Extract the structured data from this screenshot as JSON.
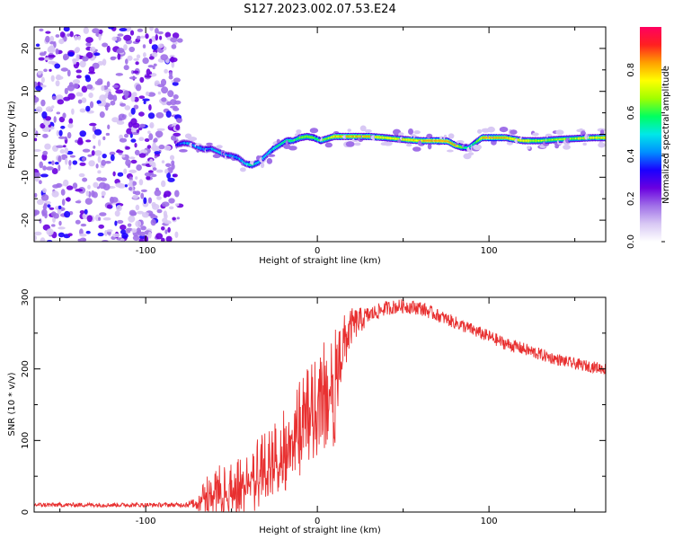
{
  "title": "S127.2023.002.07.53.E24",
  "chart_data": [
    {
      "type": "heatmap",
      "xlabel": "Height of straight line (km)",
      "ylabel": "Frequency (Hz)",
      "xlim": [
        -165,
        168
      ],
      "ylim": [
        -25,
        25
      ],
      "xticks": [
        -100,
        0,
        100
      ],
      "yticks": [
        -20,
        -10,
        0,
        10,
        20
      ],
      "colorbar": {
        "label": "Normalized spectral amplitude",
        "range": [
          0,
          1
        ],
        "ticks": [
          "0.0",
          "0.2",
          "0.4",
          "0.6",
          "0.8"
        ],
        "colors": [
          "#ffffff",
          "#d8c8f4",
          "#a070e8",
          "#6a00e0",
          "#1a00ff",
          "#0090ff",
          "#00e8e8",
          "#00ff60",
          "#a0ff00",
          "#ffff00",
          "#ffa000",
          "#ff2020",
          "#ff0060"
        ]
      },
      "noise_region_x": [
        -165,
        -80
      ],
      "ridge": {
        "x": [
          -82,
          -78,
          -74,
          -70,
          -66,
          -62,
          -58,
          -54,
          -50,
          -46,
          -42,
          -38,
          -34,
          -30,
          -26,
          -22,
          -18,
          -14,
          -10,
          -6,
          -2,
          2,
          6,
          10,
          20,
          30,
          40,
          50,
          60,
          70,
          76,
          80,
          84,
          88,
          92,
          96,
          100,
          110,
          120,
          130,
          140,
          150,
          160,
          168
        ],
        "y": [
          -2.5,
          -2.0,
          -2.2,
          -3.0,
          -3.5,
          -3.3,
          -4.0,
          -4.8,
          -5.0,
          -5.5,
          -6.8,
          -7.2,
          -6.5,
          -5.0,
          -3.5,
          -2.5,
          -1.5,
          -1.5,
          -0.8,
          -0.5,
          -0.8,
          -1.5,
          -1.0,
          -0.5,
          -0.5,
          -0.5,
          -0.8,
          -1.2,
          -1.5,
          -1.5,
          -1.6,
          -2.5,
          -3.0,
          -3.2,
          -2.0,
          -0.8,
          -0.8,
          -0.8,
          -1.5,
          -1.5,
          -1.2,
          -1.0,
          -0.8,
          -0.8
        ],
        "strength": [
          0.35,
          0.45,
          0.45,
          0.45,
          0.45,
          0.45,
          0.5,
          0.45,
          0.45,
          0.45,
          0.5,
          0.55,
          0.5,
          0.5,
          0.55,
          0.55,
          0.6,
          0.6,
          0.65,
          0.7,
          0.65,
          0.6,
          0.7,
          0.8,
          0.8,
          0.8,
          0.75,
          0.75,
          0.8,
          0.85,
          0.85,
          0.8,
          0.65,
          0.55,
          0.6,
          0.8,
          0.85,
          0.8,
          0.75,
          0.7,
          0.7,
          0.7,
          0.75,
          0.75
        ]
      }
    },
    {
      "type": "line",
      "xlabel": "Height of straight line (km)",
      "ylabel": "SNR (10 * v/v)",
      "xlim": [
        -165,
        168
      ],
      "ylim": [
        0,
        300
      ],
      "xticks": [
        -100,
        0,
        100
      ],
      "yticks": [
        0,
        100,
        200,
        300
      ],
      "line_color": "#e83030",
      "envelope": {
        "x": [
          -165,
          -140,
          -120,
          -100,
          -80,
          -72,
          -65,
          -55,
          -45,
          -35,
          -25,
          -15,
          -5,
          5,
          10,
          15,
          20,
          30,
          40,
          50,
          60,
          70,
          80,
          90,
          100,
          110,
          120,
          130,
          140,
          150,
          160,
          168
        ],
        "y": [
          10,
          10,
          10,
          10,
          10,
          12,
          30,
          40,
          45,
          65,
          85,
          115,
          150,
          185,
          200,
          230,
          260,
          275,
          285,
          288,
          285,
          275,
          265,
          255,
          245,
          235,
          228,
          220,
          213,
          207,
          203,
          200
        ],
        "noise": [
          3,
          3,
          3,
          3,
          3,
          6,
          25,
          30,
          30,
          40,
          45,
          50,
          55,
          60,
          70,
          45,
          25,
          12,
          10,
          10,
          10,
          9,
          9,
          9,
          9,
          9,
          9,
          9,
          8,
          8,
          8,
          8
        ]
      }
    }
  ]
}
